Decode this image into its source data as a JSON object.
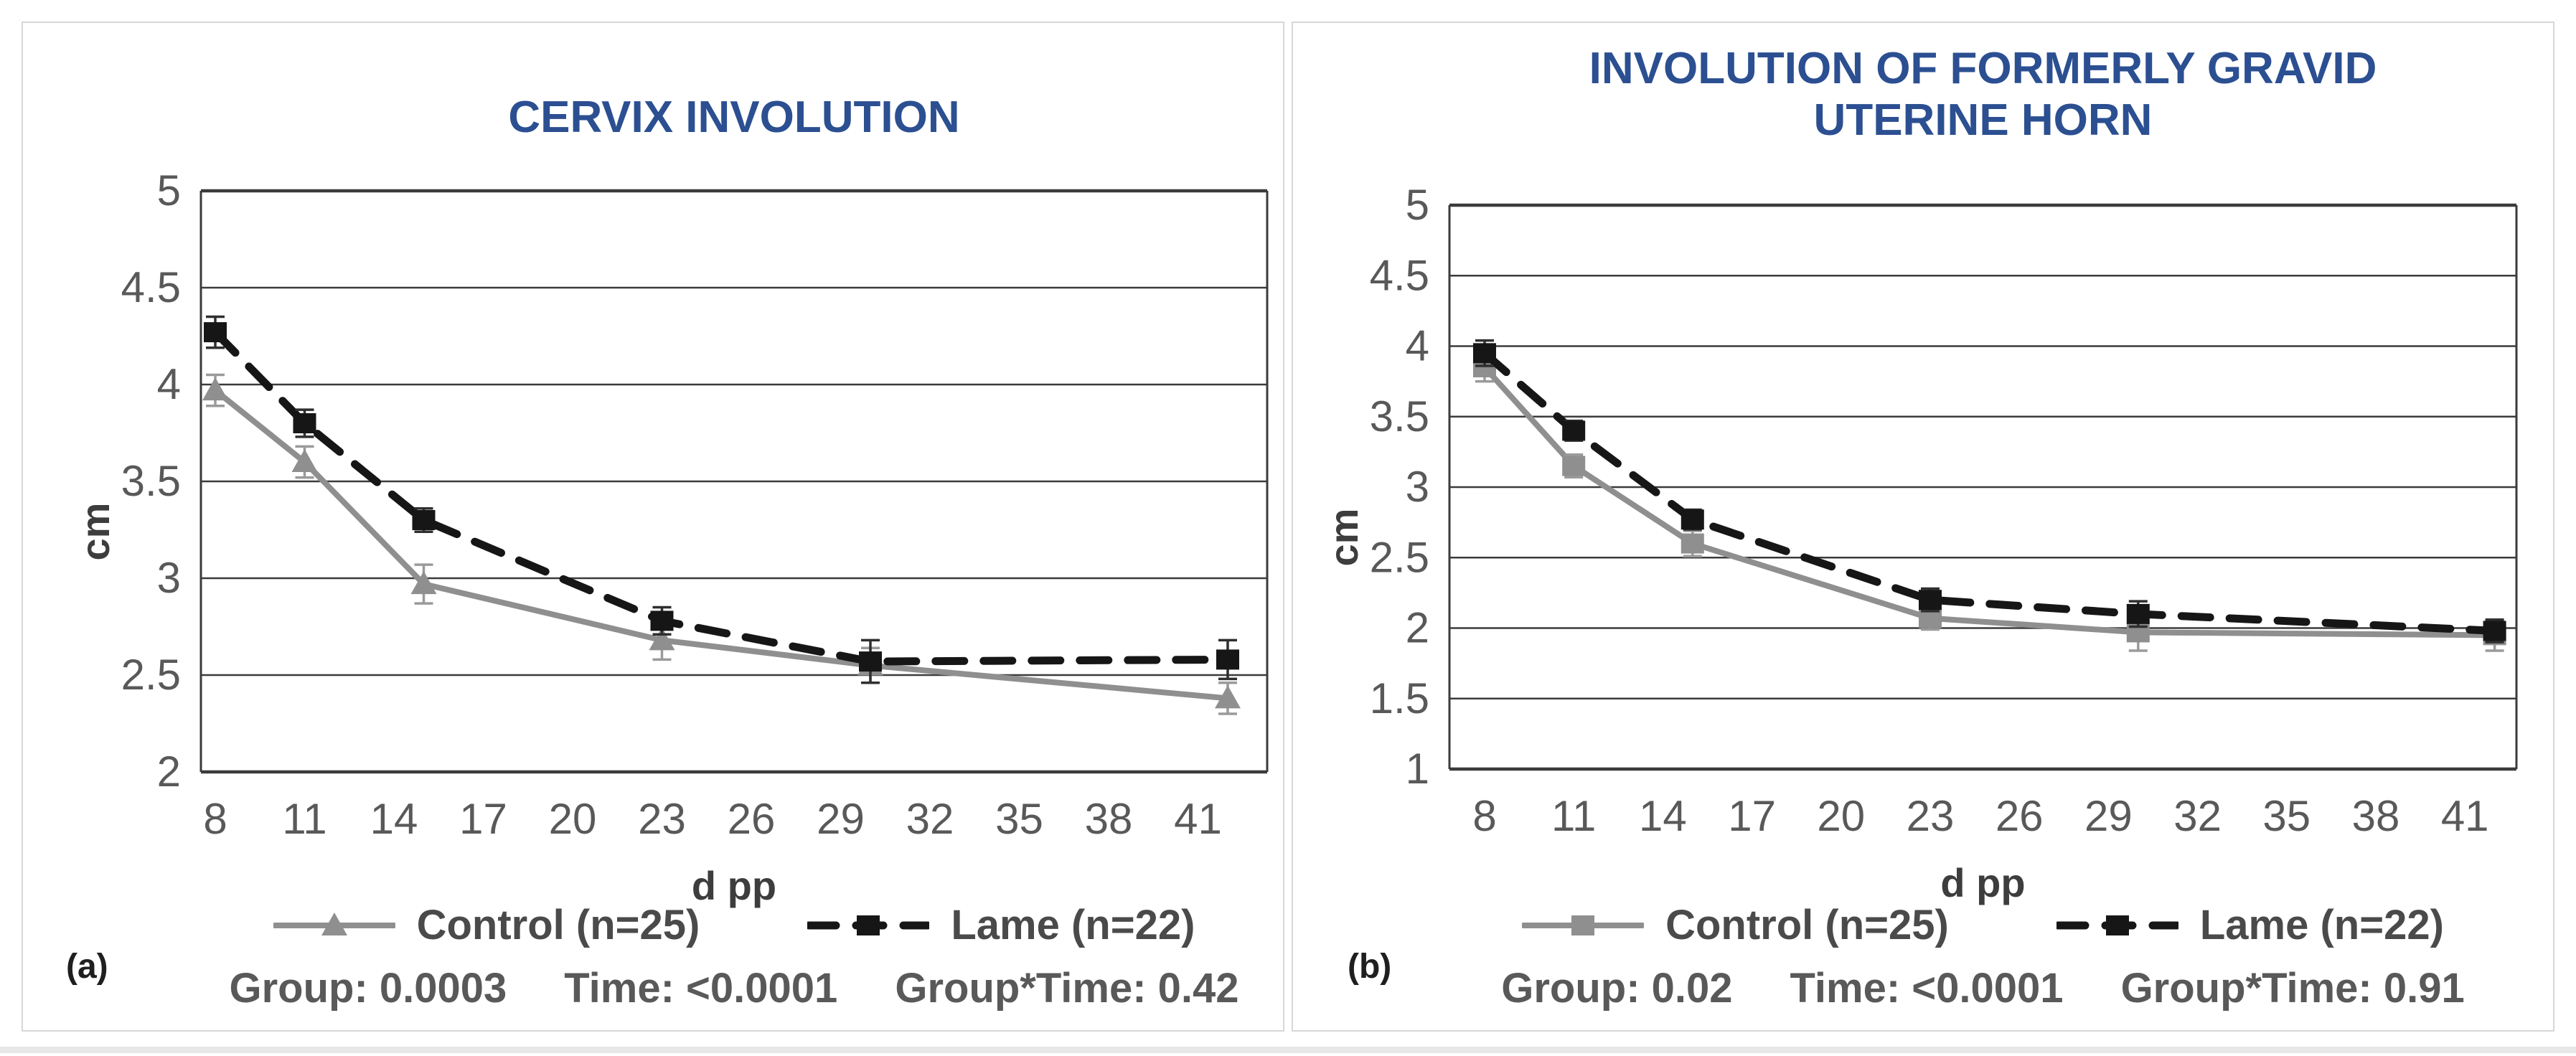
{
  "colors": {
    "title_blue": "#2b4f91",
    "control_gray": "#8f8f8f",
    "lame_black": "#161616",
    "grid": "#3b3b3b",
    "tick_label": "#595959",
    "axis_title": "#3d3d3d",
    "legend_text": "#4a4a4a",
    "stats_text": "#595959",
    "panel_border": "#d7d7d7",
    "corner_label": "#1f1f1f",
    "page_background": "#ffffff",
    "footer_strip": "#e7e7e7"
  },
  "panels": [
    {
      "corner_label": "(a)",
      "title_line1": "CERVIX INVOLUTION",
      "title_line2": "",
      "legend": [
        {
          "label": "Control (n=25)"
        },
        {
          "label": "Lame (n=22)"
        }
      ],
      "stats": {
        "group": "Group: 0.0003",
        "time": "Time: <0.0001",
        "interaction": "Group*Time: 0.42"
      }
    },
    {
      "corner_label": "(b)",
      "title_line1": "INVOLUTION OF FORMERLY GRAVID",
      "title_line2": "UTERINE HORN",
      "legend": [
        {
          "label": "Control (n=25)"
        },
        {
          "label": "Lame (n=22)"
        }
      ],
      "stats": {
        "group": "Group: 0.02",
        "time": "Time: <0.0001",
        "interaction": "Group*Time: 0.91"
      }
    }
  ],
  "chart_data": [
    {
      "type": "line",
      "title": "CERVIX INVOLUTION",
      "xlabel": "d pp",
      "ylabel": "cm",
      "x": [
        8,
        11,
        15,
        23,
        30,
        42
      ],
      "x_ticks": [
        8,
        11,
        14,
        17,
        20,
        23,
        26,
        29,
        32,
        35,
        38,
        41
      ],
      "ylim": [
        2,
        5
      ],
      "ytick_step": 0.5,
      "grid": true,
      "legend_position": "bottom",
      "series": [
        {
          "name": "Control (n=25)",
          "marker": "triangle",
          "line": "solid",
          "color": "#8f8f8f",
          "values": [
            3.97,
            3.6,
            2.97,
            2.68,
            2.55,
            2.38
          ],
          "errors": [
            0.08,
            0.08,
            0.1,
            0.1,
            0.09,
            0.08
          ]
        },
        {
          "name": "Lame (n=22)",
          "marker": "square",
          "line": "dashed",
          "color": "#161616",
          "values": [
            4.27,
            3.8,
            3.3,
            2.78,
            2.57,
            2.58
          ],
          "errors": [
            0.08,
            0.07,
            0.06,
            0.07,
            0.11,
            0.1
          ]
        }
      ],
      "annotations": [
        "Group: 0.0003",
        "Time: <0.0001",
        "Group*Time: 0.42"
      ]
    },
    {
      "type": "line",
      "title": "INVOLUTION OF FORMERLY GRAVID UTERINE HORN",
      "xlabel": "d pp",
      "ylabel": "cm",
      "x": [
        8,
        11,
        15,
        23,
        30,
        42
      ],
      "x_ticks": [
        8,
        11,
        14,
        17,
        20,
        23,
        26,
        29,
        32,
        35,
        38,
        41
      ],
      "ylim": [
        1,
        5
      ],
      "ytick_step": 0.5,
      "grid": true,
      "legend_position": "bottom",
      "series": [
        {
          "name": "Control (n=25)",
          "marker": "square",
          "line": "solid",
          "color": "#8f8f8f",
          "values": [
            3.85,
            3.15,
            2.6,
            2.07,
            1.97,
            1.95
          ],
          "errors": [
            0.1,
            0.08,
            0.09,
            0.08,
            0.13,
            0.11
          ]
        },
        {
          "name": "Lame (n=22)",
          "marker": "square",
          "line": "dashed",
          "color": "#161616",
          "values": [
            3.95,
            3.4,
            2.77,
            2.2,
            2.1,
            1.98
          ],
          "errors": [
            0.09,
            0.07,
            0.07,
            0.08,
            0.09,
            0.08
          ]
        }
      ],
      "annotations": [
        "Group: 0.02",
        "Time: <0.0001",
        "Group*Time: 0.91"
      ]
    }
  ]
}
